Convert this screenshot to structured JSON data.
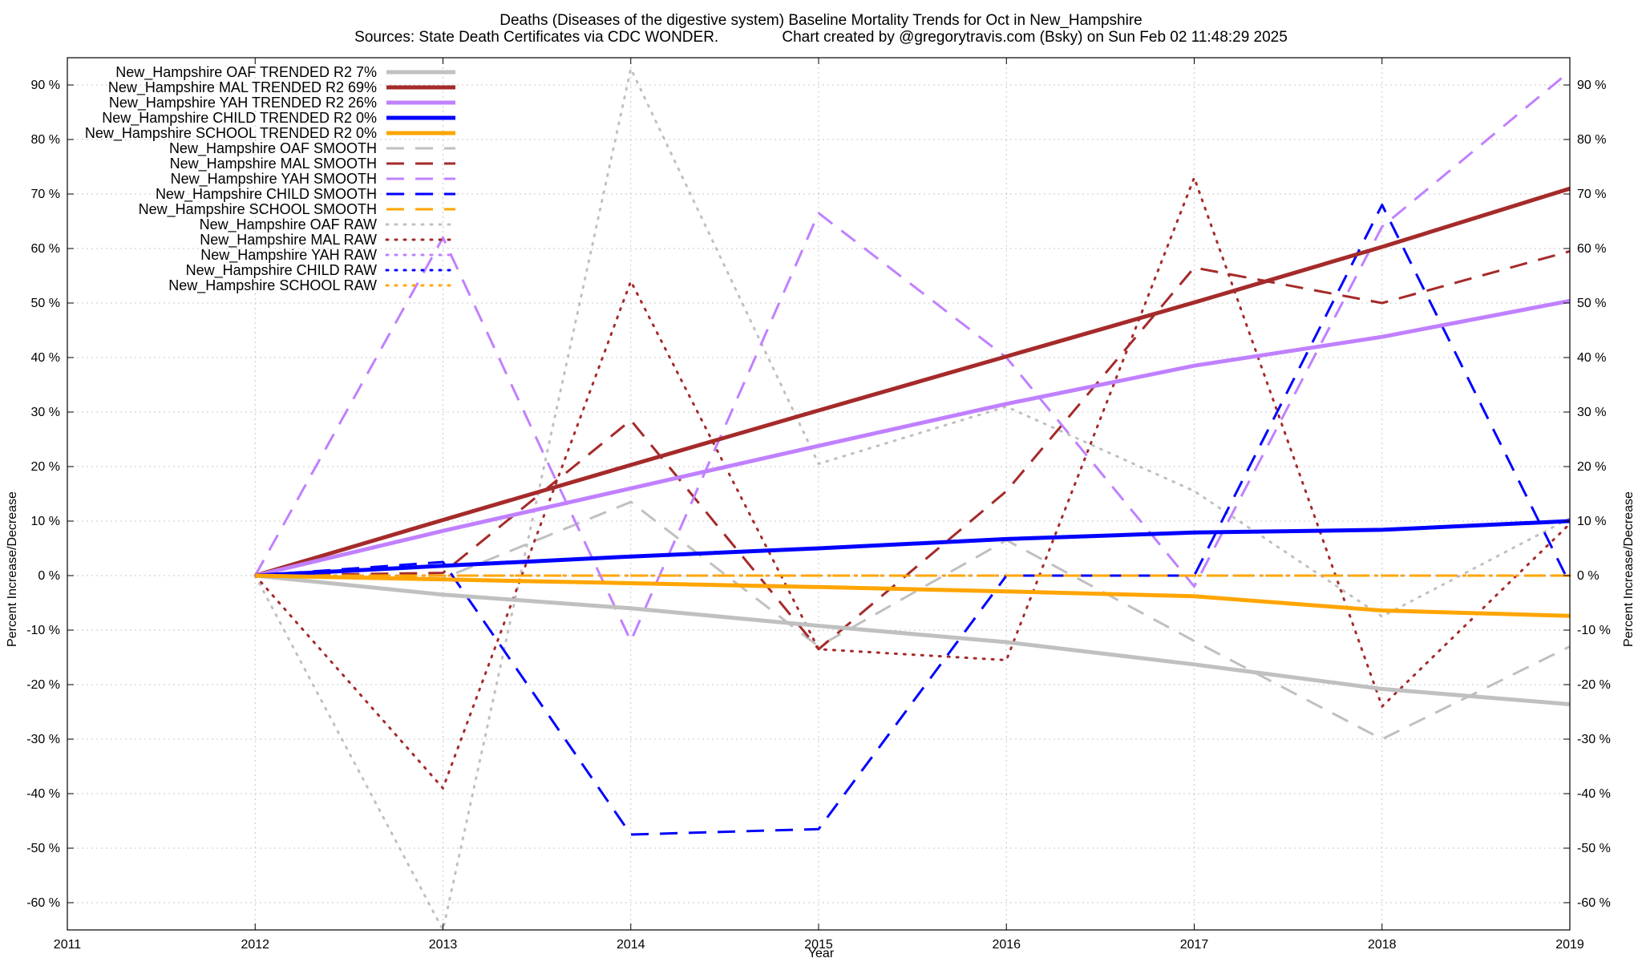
{
  "chart_data": {
    "type": "line",
    "title": "Deaths (Diseases of the digestive system)  Baseline Mortality Trends for Oct in New_Hampshire",
    "subtitle": "Sources: State Death Certificates via CDC WONDER.               Chart created by @gregorytravis.com (Bsky) on Sun Feb 02 11:48:29 2025",
    "xlabel": "Year",
    "ylabel": "Percent Increase/Decrease",
    "y2label": "Percent Increase/Decrease",
    "xlim": [
      2011,
      2019
    ],
    "ylim": [
      -65,
      95
    ],
    "x_ticks": [
      2011,
      2012,
      2013,
      2014,
      2015,
      2016,
      2017,
      2018,
      2019
    ],
    "y_ticks": [
      -60,
      -50,
      -40,
      -30,
      -20,
      -10,
      0,
      10,
      20,
      30,
      40,
      50,
      60,
      70,
      80,
      90
    ],
    "y_tick_suffix": " %",
    "grid": true,
    "legend_position": "top-left",
    "x": [
      2012,
      2013,
      2014,
      2015,
      2016,
      2017,
      2018,
      2019
    ],
    "series": [
      {
        "name": "New_Hampshire OAF TRENDED R2  7%",
        "color": "#c0c0c0",
        "style": "solid",
        "width": 5,
        "values": [
          0,
          -3.5,
          -6,
          -9.2,
          -12.2,
          -16.3,
          -20.8,
          -23.6
        ]
      },
      {
        "name": "New_Hampshire MAL TRENDED R2  69%",
        "color": "#a52a2a",
        "style": "solid",
        "width": 5,
        "values": [
          0,
          10.2,
          20.3,
          30.3,
          40.2,
          50.1,
          60.3,
          71
        ]
      },
      {
        "name": "New_Hampshire YAH TRENDED R2  26%",
        "color": "#c080ff",
        "style": "solid",
        "width": 5,
        "values": [
          0,
          8.2,
          16,
          23.8,
          31.5,
          38.5,
          43.8,
          50.4
        ]
      },
      {
        "name": "New_Hampshire CHILD TRENDED R2  0%",
        "color": "#0000ff",
        "style": "solid",
        "width": 5,
        "values": [
          0,
          1.8,
          3.5,
          5,
          6.7,
          7.9,
          8.4,
          10
        ]
      },
      {
        "name": "New_Hampshire SCHOOL TRENDED R2  0%",
        "color": "#ffa500",
        "style": "solid",
        "width": 5,
        "values": [
          0,
          -0.7,
          -1.4,
          -2.1,
          -2.9,
          -3.8,
          -6.4,
          -7.4
        ]
      },
      {
        "name": "New_Hampshire OAF SMOOTH",
        "color": "#c0c0c0",
        "style": "dash",
        "width": 3,
        "values": [
          0,
          -0.5,
          13.5,
          -13,
          6.5,
          -12,
          -30,
          -13
        ]
      },
      {
        "name": "New_Hampshire MAL SMOOTH",
        "color": "#a52a2a",
        "style": "dash",
        "width": 3,
        "values": [
          0,
          0.5,
          28.5,
          -13.5,
          15.5,
          56.5,
          50,
          59.5
        ]
      },
      {
        "name": "New_Hampshire YAH SMOOTH",
        "color": "#c080ff",
        "style": "dash",
        "width": 3,
        "values": [
          0,
          62,
          -12,
          66.5,
          40,
          -2,
          64,
          92.5
        ]
      },
      {
        "name": "New_Hampshire CHILD SMOOTH",
        "color": "#0000ff",
        "style": "dash",
        "width": 3,
        "values": [
          0,
          2.5,
          -47.5,
          -46.5,
          0,
          0,
          68,
          -1.5
        ]
      },
      {
        "name": "New_Hampshire SCHOOL SMOOTH",
        "color": "#ffa500",
        "style": "dash",
        "width": 3,
        "values": [
          0,
          0,
          0,
          0,
          0,
          0,
          0,
          0
        ]
      },
      {
        "name": "New_Hampshire OAF RAW",
        "color": "#c0c0c0",
        "style": "dot",
        "width": 3,
        "values": [
          0,
          -65,
          93,
          20.5,
          31,
          15.5,
          -7.5,
          10.5
        ]
      },
      {
        "name": "New_Hampshire MAL RAW",
        "color": "#a52a2a",
        "style": "dot",
        "width": 3,
        "values": [
          0,
          -39,
          54,
          -13.5,
          -15.5,
          73,
          -24,
          9.5
        ]
      },
      {
        "name": "New_Hampshire YAH RAW",
        "color": "#c080ff",
        "style": "dot",
        "width": 3,
        "values": [
          0,
          0,
          0,
          0,
          0,
          0,
          0,
          0
        ]
      },
      {
        "name": "New_Hampshire CHILD RAW",
        "color": "#0000ff",
        "style": "dot",
        "width": 3,
        "values": [
          0,
          0,
          0,
          0,
          0,
          0,
          0,
          0
        ]
      },
      {
        "name": "New_Hampshire SCHOOL RAW",
        "color": "#ffa500",
        "style": "dot",
        "width": 3,
        "values": [
          0,
          0,
          0,
          0,
          0,
          0,
          0,
          0
        ]
      }
    ]
  }
}
